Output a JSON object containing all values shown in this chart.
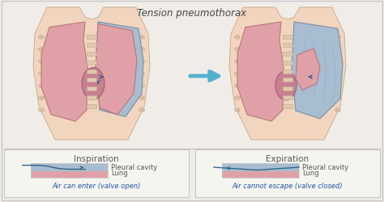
{
  "title": "Tension pneumothorax",
  "bg_color": "#f0ede8",
  "body_skin": "#f2d5be",
  "body_edge": "#c8a888",
  "lung_pink": "#e0a0a8",
  "lung_edge": "#b87878",
  "pleural_blue": "#a8bdd0",
  "pleural_edge": "#7890a8",
  "heart_color": "#c88090",
  "heart_edge": "#a06070",
  "spine_color": "#dfc8b0",
  "spine_edge": "#c0a888",
  "rib_color": "#d8c0a8",
  "arrow_color": "#55b0d0",
  "dark_arrow": "#336688",
  "legend_bg": "#f5f5f0",
  "legend_border": "#c8c8c8",
  "divider_color": "#c0c0bc",
  "title_color": "#444444",
  "text_color": "#555555",
  "caption_blue": "#2255aa",
  "insp_label": "Inspiration",
  "exp_label": "Expiration",
  "insp_caption": "Air can enter (valve open)",
  "exp_caption": "Air cannot escape (valve closed)",
  "pleural_label": "Pleural cavity",
  "lung_label": "Lung",
  "title_fontsize": 8.5,
  "label_fontsize": 7.5,
  "small_fontsize": 6.0
}
